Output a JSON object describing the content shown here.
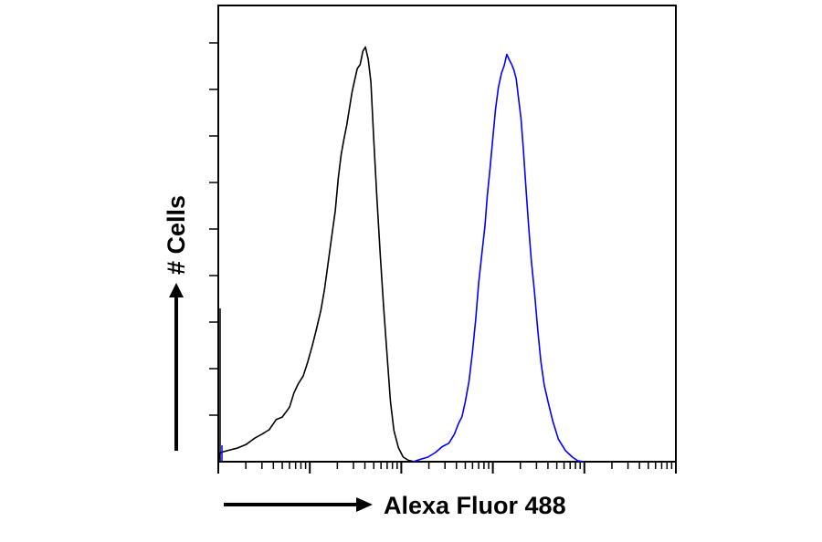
{
  "chart_data": {
    "type": "line",
    "title": "",
    "xlabel": "Alexa Fluor 488",
    "ylabel": "# Cells",
    "xscale": "log",
    "xlim": [
      1,
      100000
    ],
    "ylim": [
      0,
      100
    ],
    "grid": false,
    "legend": "none",
    "series": [
      {
        "color": "#000000",
        "points": [
          [
            1.0,
            0
          ],
          [
            1.05,
            2
          ],
          [
            1.3,
            2.5
          ],
          [
            1.6,
            3
          ],
          [
            2.0,
            3.5
          ],
          [
            2.5,
            5
          ],
          [
            3.0,
            6
          ],
          [
            3.6,
            7
          ],
          [
            4.3,
            9
          ],
          [
            5.0,
            10
          ],
          [
            6.0,
            12
          ],
          [
            6.7,
            15
          ],
          [
            7.5,
            17
          ],
          [
            8.5,
            19
          ],
          [
            9.5,
            22
          ],
          [
            10.6,
            25
          ],
          [
            11.8,
            29
          ],
          [
            13.2,
            33
          ],
          [
            14.5,
            38
          ],
          [
            16.0,
            44
          ],
          [
            17.5,
            50
          ],
          [
            19.0,
            55
          ],
          [
            20.5,
            62
          ],
          [
            22.0,
            67
          ],
          [
            23.6,
            71
          ],
          [
            25.3,
            74
          ],
          [
            27.0,
            77
          ],
          [
            29.0,
            81
          ],
          [
            31.0,
            84
          ],
          [
            33.0,
            86
          ],
          [
            35.5,
            87
          ],
          [
            38.0,
            90
          ],
          [
            40.5,
            91
          ],
          [
            43.5,
            88
          ],
          [
            46.5,
            83
          ],
          [
            50.0,
            71
          ],
          [
            54.0,
            58
          ],
          [
            59.0,
            45
          ],
          [
            64.0,
            34
          ],
          [
            70.0,
            23
          ],
          [
            76.0,
            13
          ],
          [
            83.0,
            7
          ],
          [
            93.0,
            3
          ],
          [
            105.0,
            1
          ],
          [
            120.0,
            0.3
          ],
          [
            140.0,
            0
          ]
        ]
      },
      {
        "color": "#0000ff",
        "points": [
          [
            135.0,
            0
          ],
          [
            160.0,
            0.5
          ],
          [
            195.0,
            1
          ],
          [
            235.0,
            2
          ],
          [
            280.0,
            3
          ],
          [
            330.0,
            4
          ],
          [
            380.0,
            6
          ],
          [
            420.0,
            8
          ],
          [
            460.0,
            10
          ],
          [
            500.0,
            13
          ],
          [
            550.0,
            18
          ],
          [
            600.0,
            24
          ],
          [
            650.0,
            31
          ],
          [
            700.0,
            39
          ],
          [
            760.0,
            46
          ],
          [
            820.0,
            52
          ],
          [
            870.0,
            58
          ],
          [
            930.0,
            64
          ],
          [
            1000.0,
            71
          ],
          [
            1070.0,
            77
          ],
          [
            1150.0,
            82
          ],
          [
            1240.0,
            85
          ],
          [
            1330.0,
            87
          ],
          [
            1420.0,
            89
          ],
          [
            1520.0,
            88
          ],
          [
            1610.0,
            87
          ],
          [
            1700.0,
            86
          ],
          [
            1800.0,
            84
          ],
          [
            1900.0,
            80
          ],
          [
            2030.0,
            75
          ],
          [
            2160.0,
            68
          ],
          [
            2300.0,
            60
          ],
          [
            2450.0,
            52
          ],
          [
            2630.0,
            44
          ],
          [
            2850.0,
            37
          ],
          [
            3100.0,
            29
          ],
          [
            3350.0,
            22
          ],
          [
            3650.0,
            17
          ],
          [
            4000.0,
            13
          ],
          [
            4500.0,
            9
          ],
          [
            5200.0,
            5
          ],
          [
            6200.0,
            2.5
          ],
          [
            7400.0,
            1
          ],
          [
            8500.0,
            0.2
          ],
          [
            9800.0,
            0
          ]
        ]
      }
    ]
  }
}
